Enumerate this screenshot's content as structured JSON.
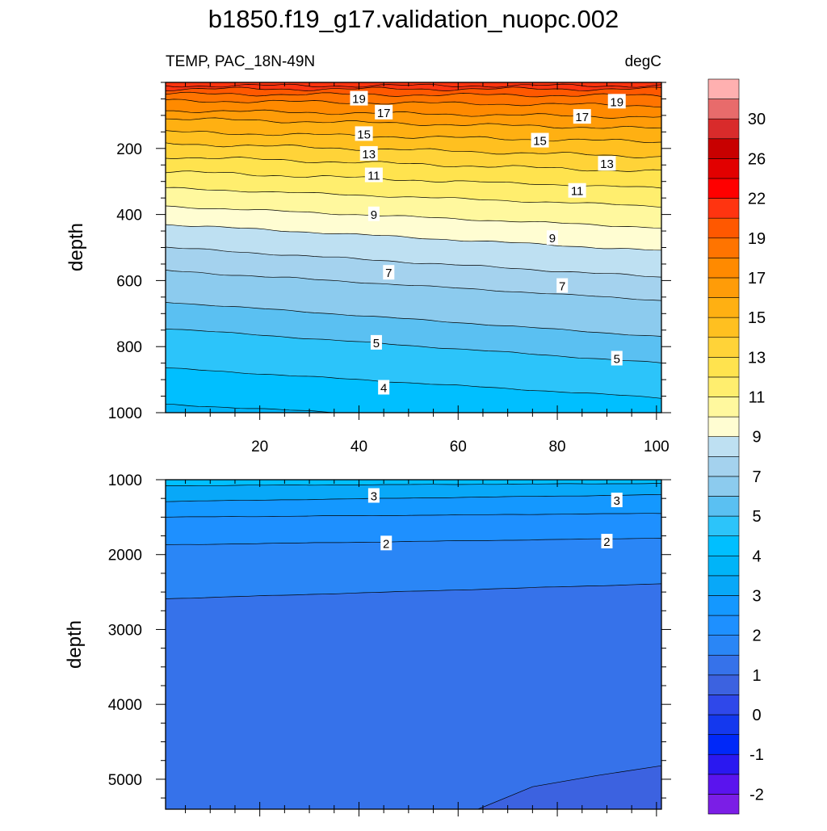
{
  "title": "b1850.f19_g17.validation_nuopc.002",
  "chart_data": [
    {
      "type": "contour",
      "panel": "upper",
      "left_label": "TEMP, PAC_18N-49N",
      "right_label": "degC",
      "ylabel": "depth",
      "xlim": [
        1,
        101
      ],
      "ylim": [
        1000,
        0
      ],
      "x_ticks": [
        20,
        40,
        60,
        80,
        100
      ],
      "y_ticks": [
        200,
        400,
        600,
        800,
        1000
      ],
      "isotherms": [
        {
          "level": 21,
          "depth": [
            10,
            10
          ]
        },
        {
          "level": 20,
          "depth": [
            20,
            20
          ]
        },
        {
          "level": 19,
          "depth": [
            35,
            40
          ]
        },
        {
          "level": 18,
          "depth": [
            55,
            70
          ]
        },
        {
          "level": 17,
          "depth": [
            85,
            105
          ]
        },
        {
          "level": 16,
          "depth": [
            110,
            140
          ]
        },
        {
          "level": 15,
          "depth": [
            150,
            180
          ]
        },
        {
          "level": 14,
          "depth": [
            185,
            225
          ]
        },
        {
          "level": 13,
          "depth": [
            225,
            270
          ]
        },
        {
          "level": 12,
          "depth": [
            270,
            320
          ]
        },
        {
          "level": 11,
          "depth": [
            320,
            375
          ]
        },
        {
          "level": 10,
          "depth": [
            375,
            440
          ]
        },
        {
          "level": 9,
          "depth": [
            430,
            510
          ]
        },
        {
          "level": 8,
          "depth": [
            500,
            590
          ]
        },
        {
          "level": 7,
          "depth": [
            570,
            660
          ]
        },
        {
          "level": 6,
          "depth": [
            665,
            770
          ]
        },
        {
          "level": 5,
          "depth": [
            745,
            850
          ]
        },
        {
          "level": 4.5,
          "depth": [
            865,
            955
          ]
        },
        {
          "level": 4,
          "depth": [
            975,
            1045
          ]
        }
      ],
      "contour_labels": [
        {
          "text": "19",
          "x": 40,
          "depth": 48
        },
        {
          "text": "17",
          "x": 45,
          "depth": 90
        },
        {
          "text": "15",
          "x": 41,
          "depth": 155
        },
        {
          "text": "13",
          "x": 42,
          "depth": 215
        },
        {
          "text": "11",
          "x": 43,
          "depth": 280
        },
        {
          "text": "9",
          "x": 43,
          "depth": 398
        },
        {
          "text": "7",
          "x": 46,
          "depth": 575
        },
        {
          "text": "5",
          "x": 43.5,
          "depth": 787
        },
        {
          "text": "4",
          "x": 45,
          "depth": 923
        },
        {
          "text": "19",
          "x": 92,
          "depth": 57
        },
        {
          "text": "17",
          "x": 85,
          "depth": 103
        },
        {
          "text": "15",
          "x": 76.5,
          "depth": 175
        },
        {
          "text": "13",
          "x": 90,
          "depth": 245
        },
        {
          "text": "11",
          "x": 84,
          "depth": 327
        },
        {
          "text": "9",
          "x": 79,
          "depth": 470
        },
        {
          "text": "7",
          "x": 81,
          "depth": 615
        },
        {
          "text": "5",
          "x": 92,
          "depth": 835
        }
      ]
    },
    {
      "type": "contour",
      "panel": "lower",
      "ylabel": "depth",
      "xlim": [
        1,
        101
      ],
      "ylim": [
        5400,
        1000
      ],
      "y_ticks": [
        1000,
        2000,
        3000,
        4000,
        5000
      ],
      "isotherms": [
        {
          "level": 3.5,
          "depth": [
            1080,
            1050
          ]
        },
        {
          "level": 3,
          "depth": [
            1290,
            1200
          ]
        },
        {
          "level": 2.5,
          "depth": [
            1500,
            1450
          ]
        },
        {
          "level": 2,
          "depth": [
            1870,
            1780
          ]
        },
        {
          "level": 1.5,
          "depth": [
            2590,
            2390
          ]
        }
      ],
      "deep_isotherm": {
        "level": 1,
        "points": [
          [
            64,
            5400
          ],
          [
            75,
            5100
          ],
          [
            88,
            4950
          ],
          [
            101,
            4820
          ]
        ]
      },
      "contour_labels": [
        {
          "text": "3",
          "x": 43,
          "depth": 1210
        },
        {
          "text": "3",
          "x": 92,
          "depth": 1270
        },
        {
          "text": "2",
          "x": 45.5,
          "depth": 1845
        },
        {
          "text": "2",
          "x": 90,
          "depth": 1820
        }
      ]
    }
  ],
  "colorbar": {
    "labels": [
      "-2",
      "-1",
      "0",
      "1",
      "2",
      "3",
      "4",
      "5",
      "7",
      "9",
      "11",
      "13",
      "15",
      "17",
      "19",
      "22",
      "26",
      "30"
    ],
    "levels": [
      -2,
      -1.5,
      -1,
      -0.5,
      0,
      0.5,
      1,
      1.5,
      2,
      2.5,
      3,
      3.5,
      4,
      4.5,
      5,
      6,
      7,
      8,
      9,
      10,
      11,
      12,
      13,
      14,
      15,
      16,
      17,
      18,
      19,
      20,
      22,
      24,
      26,
      28,
      30,
      32
    ],
    "colors": [
      "#7b1ee6",
      "#5a14ee",
      "#2a18f0",
      "#0028f8",
      "#1438ee",
      "#2f48ea",
      "#3c62e0",
      "#3672ea",
      "#2a86f6",
      "#1e90ff",
      "#1498ff",
      "#08a8f8",
      "#00b4f8",
      "#00bfff",
      "#2cc4fa",
      "#5ac0f2",
      "#8ccbee",
      "#a4d2ee",
      "#bee0f2",
      "#fffdd2",
      "#fff89e",
      "#ffee6e",
      "#ffe34e",
      "#ffd338",
      "#ffc020",
      "#ffb012",
      "#ff9c08",
      "#ff8a00",
      "#ff7400",
      "#ff5800",
      "#ff3410",
      "#ff0000",
      "#e20000",
      "#c80000",
      "#d92b2b",
      "#e86b6b",
      "#ffb0b0"
    ]
  }
}
